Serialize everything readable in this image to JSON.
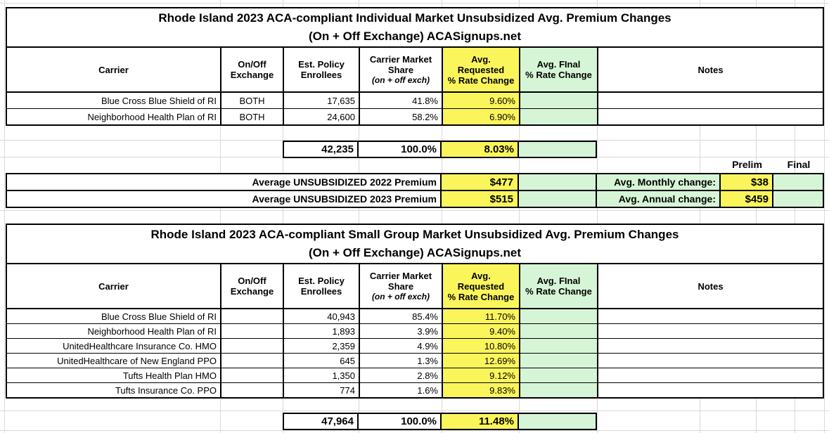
{
  "colors": {
    "highlight_yellow": "#FBF55C",
    "highlight_green": "#D6F5D6",
    "border_black": "#000000",
    "gridline_gray": "#d9d9d9"
  },
  "column_headers": {
    "carrier": "Carrier",
    "exchange": "On/Off\nExchange",
    "enrollees": "Est. Policy\nEnrollees",
    "market_share": "Carrier Market\nShare",
    "market_share_note": "(on + off exch)",
    "requested": "Avg.\nRequested\n% Rate Change",
    "final": "Avg. FInal\n% Rate Change",
    "notes": "Notes"
  },
  "individual_market": {
    "title_line1": "Rhode Island 2023 ACA-compliant Individual Market Unsubsidized Avg. Premium Changes",
    "title_line2": "(On + Off Exchange) ACASignups.net",
    "rows": [
      {
        "carrier": "Blue Cross Blue Shield of RI",
        "exchange": "BOTH",
        "enrollees": "17,635",
        "market_share": "41.8%",
        "requested": "9.60%",
        "final": "",
        "notes": ""
      },
      {
        "carrier": "Neighborhood Health Plan of RI",
        "exchange": "BOTH",
        "enrollees": "24,600",
        "market_share": "58.2%",
        "requested": "6.90%",
        "final": "",
        "notes": ""
      }
    ],
    "total": {
      "enrollees": "42,235",
      "market_share": "100.0%",
      "requested": "8.03%",
      "final": ""
    }
  },
  "premium_summary": {
    "prelim_label": "Prelim",
    "final_label": "Final",
    "rows": [
      {
        "label": "Average UNSUBSIDIZED 2022 Premium",
        "value": "$477",
        "final": "",
        "change_label": "Avg. Monthly change:",
        "change_value": "$38",
        "change_final": ""
      },
      {
        "label": "Average UNSUBSIDIZED 2023 Premium",
        "value": "$515",
        "final": "",
        "change_label": "Avg. Annual change:",
        "change_value": "$459",
        "change_final": ""
      }
    ]
  },
  "small_group_market": {
    "title_line1": "Rhode Island 2023 ACA-compliant Small Group Market Unsubsidized Avg. Premium Changes",
    "title_line2": "(On + Off Exchange) ACASignups.net",
    "rows": [
      {
        "carrier": "Blue Cross Blue Shield of RI",
        "exchange": "",
        "enrollees": "40,943",
        "market_share": "85.4%",
        "requested": "11.70%",
        "final": "",
        "notes": ""
      },
      {
        "carrier": "Neighborhood Health Plan of RI",
        "exchange": "",
        "enrollees": "1,893",
        "market_share": "3.9%",
        "requested": "9.40%",
        "final": "",
        "notes": ""
      },
      {
        "carrier": "UnitedHealthcare Insurance Co. HMO",
        "exchange": "",
        "enrollees": "2,359",
        "market_share": "4.9%",
        "requested": "10.80%",
        "final": "",
        "notes": ""
      },
      {
        "carrier": "UnitedHealthcare of New England PPO",
        "exchange": "",
        "enrollees": "645",
        "market_share": "1.3%",
        "requested": "12.69%",
        "final": "",
        "notes": ""
      },
      {
        "carrier": "Tufts Health Plan HMO",
        "exchange": "",
        "enrollees": "1,350",
        "market_share": "2.8%",
        "requested": "9.12%",
        "final": "",
        "notes": ""
      },
      {
        "carrier": "Tufts Insurance Co. PPO",
        "exchange": "",
        "enrollees": "774",
        "market_share": "1.6%",
        "requested": "9.83%",
        "final": "",
        "notes": ""
      }
    ],
    "total": {
      "enrollees": "47,964",
      "market_share": "100.0%",
      "requested": "11.48%",
      "final": ""
    }
  }
}
